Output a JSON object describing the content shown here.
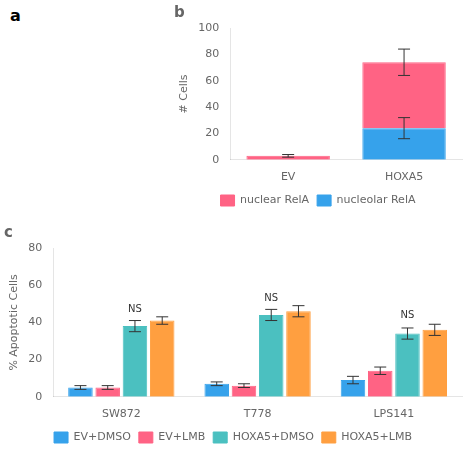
{
  "chart_data": [
    {
      "type": "bar",
      "title": "b",
      "stacked": true,
      "categories": [
        "EV",
        "HOXA5"
      ],
      "series": [
        {
          "name": "nucleolar RelA",
          "values": [
            0,
            24
          ],
          "errors": [
            0,
            8
          ]
        },
        {
          "name": "nuclear RelA",
          "values": [
            3,
            50
          ],
          "errors": [
            1,
            10
          ]
        }
      ],
      "ylabel": "# Cells",
      "ylim": [
        0,
        100
      ],
      "yticks": [
        0,
        20,
        40,
        60,
        80,
        100
      ],
      "grid": false,
      "legend": "bottom",
      "annotations": [
        {
          "text": "a"
        }
      ]
    },
    {
      "type": "bar",
      "title": "c",
      "categories": [
        "SW872",
        "T778",
        "LPS141"
      ],
      "series": [
        {
          "name": "EV+DMSO",
          "values": [
            5,
            7,
            9
          ],
          "errors": [
            1,
            1,
            2
          ]
        },
        {
          "name": "EV+LMB",
          "values": [
            5,
            6,
            14
          ],
          "errors": [
            1,
            1,
            2
          ]
        },
        {
          "name": "HOXA5+DMSO",
          "values": [
            38,
            44,
            34
          ],
          "errors": [
            3,
            3,
            3
          ]
        },
        {
          "name": "HOXA5+LMB",
          "values": [
            41,
            46,
            36
          ],
          "errors": [
            2,
            3,
            3
          ]
        }
      ],
      "ylabel": "% Apoptotic Cells",
      "ylim": [
        0,
        80
      ],
      "yticks": [
        0,
        20,
        40,
        60,
        80
      ],
      "grid": false,
      "legend": "bottom",
      "annotations": [
        {
          "text": "NS",
          "category": "SW872",
          "series": "HOXA5+DMSO",
          "y": 43
        },
        {
          "text": "NS",
          "category": "T778",
          "series": "HOXA5+DMSO",
          "y": 49
        },
        {
          "text": "NS",
          "category": "LPS141",
          "series": "HOXA5+DMSO",
          "y": 40
        }
      ]
    }
  ]
}
